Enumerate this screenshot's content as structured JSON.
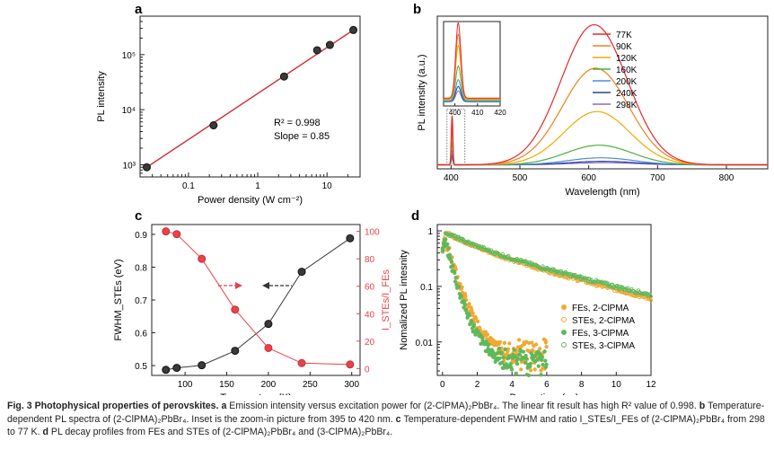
{
  "chart_data": [
    {
      "panel": "a",
      "type": "scatter",
      "xlabel": "Power density (W cm⁻²)",
      "ylabel": "PL intensity",
      "x_scale": "log",
      "y_scale": "log",
      "xlim": [
        0.02,
        30
      ],
      "ylim": [
        600,
        500000
      ],
      "x_ticks": [
        0.1,
        1,
        10
      ],
      "x_tick_labels": [
        "0.1",
        "1",
        "10"
      ],
      "y_ticks": [
        1000,
        10000,
        100000
      ],
      "y_tick_labels": [
        "10³",
        "10⁴",
        "10⁵"
      ],
      "points": [
        [
          0.025,
          900
        ],
        [
          0.23,
          5200
        ],
        [
          2.4,
          40000
        ],
        [
          7.2,
          120000
        ],
        [
          11,
          150000
        ],
        [
          24,
          280000
        ]
      ],
      "fit": {
        "x": [
          0.025,
          24
        ],
        "y": [
          900,
          280000
        ]
      },
      "annotations": [
        "R² = 0.998",
        "Slope = 0.85"
      ],
      "colors": {
        "marker": "#3a3a3a",
        "fit": "#d6262e"
      }
    },
    {
      "panel": "b",
      "type": "line",
      "xlabel": "Wavelength (nm)",
      "ylabel": "PL intensity (a.u.)",
      "xlim": [
        380,
        860
      ],
      "x_ticks": [
        400,
        500,
        600,
        700,
        800
      ],
      "series": [
        {
          "name": "77K",
          "color": "#e8282e",
          "fe_amp": 0.35,
          "ste_amp": 1.0,
          "ste_center": 608
        },
        {
          "name": "90K",
          "color": "#f08019",
          "fe_amp": 0.3,
          "ste_amp": 0.69,
          "ste_center": 610
        },
        {
          "name": "120K",
          "color": "#f2a800",
          "fe_amp": 0.25,
          "ste_amp": 0.38,
          "ste_center": 612
        },
        {
          "name": "160K",
          "color": "#4caf3e",
          "fe_amp": 0.16,
          "ste_amp": 0.14,
          "ste_center": 615
        },
        {
          "name": "200K",
          "color": "#4a8fd0",
          "fe_amp": 0.1,
          "ste_amp": 0.05,
          "ste_center": 618
        },
        {
          "name": "240K",
          "color": "#2f3f9a",
          "fe_amp": 0.07,
          "ste_amp": 0.025,
          "ste_center": 620
        },
        {
          "name": "298K",
          "color": "#8a6cc0",
          "fe_amp": 0.05,
          "ste_amp": 0.015,
          "ste_center": 622
        }
      ],
      "inset": {
        "xlim": [
          395,
          420
        ],
        "x_ticks": [
          400,
          410,
          420
        ]
      }
    },
    {
      "panel": "c",
      "type": "line",
      "xlabel": "Temperature (K)",
      "ylabel_left": "FWHM_STEs (eV)",
      "ylabel_right": "I_STEs/I_FEs",
      "xlim": [
        60,
        310
      ],
      "ylim_left": [
        0.47,
        0.93
      ],
      "ylim_right": [
        -5,
        105
      ],
      "x_ticks": [
        50,
        100,
        150,
        200,
        250,
        300
      ],
      "y_ticks_left": [
        0.5,
        0.6,
        0.7,
        0.8,
        0.9
      ],
      "y_ticks_right": [
        0,
        20,
        40,
        60,
        80,
        100
      ],
      "series": [
        {
          "name": "FWHM",
          "axis": "left",
          "color": "#3a3a3a",
          "x": [
            77,
            90,
            120,
            160,
            200,
            240,
            298
          ],
          "y": [
            0.487,
            0.493,
            0.501,
            0.545,
            0.627,
            0.786,
            0.888
          ]
        },
        {
          "name": "ratio",
          "axis": "right",
          "color": "#e8424c",
          "x": [
            77,
            90,
            120,
            160,
            200,
            240,
            298
          ],
          "y": [
            100,
            98,
            80,
            43,
            15,
            4,
            3
          ]
        }
      ]
    },
    {
      "panel": "d",
      "type": "scatter",
      "xlabel": "Decay time (ns)",
      "ylabel": "Nomalized PL intesnity",
      "y_scale": "log",
      "xlim": [
        -0.3,
        12
      ],
      "ylim": [
        0.0025,
        1.3
      ],
      "x_ticks": [
        0,
        2,
        4,
        6,
        8,
        10,
        12
      ],
      "y_ticks": [
        0.01,
        0.1,
        1
      ],
      "y_tick_labels": [
        "0.01",
        "0.1",
        "1"
      ],
      "series": [
        {
          "name": "FEs, 2-ClPMA",
          "color": "#f2a833",
          "tmax": 6,
          "tau": 0.4,
          "tau2": 1.6,
          "a2": 0.05,
          "noise_floor": 0.006
        },
        {
          "name": "STEs, 2-ClPMA",
          "color": "#f2a833",
          "tmax": 12,
          "tau": 1.6,
          "tau2": 5.4,
          "a2": 0.55
        },
        {
          "name": "FEs, 3-ClPMA",
          "color": "#5fb85a",
          "tmax": 6,
          "tau": 0.35,
          "tau2": 1.5,
          "a2": 0.04,
          "noise_floor": 0.004
        },
        {
          "name": "STEs, 3-ClPMA",
          "color": "#5fb85a",
          "tmax": 12,
          "tau": 1.7,
          "tau2": 5.8,
          "a2": 0.55
        }
      ]
    }
  ],
  "panels": {
    "a": "a",
    "b": "b",
    "c": "c",
    "d": "d"
  },
  "caption": {
    "label": "Fig. 3 Photophysical properties of perovskites.",
    "a_text": "Emission intensity versus excitation power for (2-ClPMA)₂PbBr₄. The linear fit result has high R² value of 0.998.",
    "b_text": "Temperature-dependent PL spectra of (2-ClPMA)₂PbBr₄. Inset is the zoom-in picture from 395 to 420 nm.",
    "c_text": "Temperature-dependent FWHM and ratio I_STEs/I_FEs of (2-ClPMA)₂PbBr₄ from 298 to 77 K.",
    "d_text": "PL decay profiles from FEs and STEs of (2-ClPMA)₂PbBr₄ and (3-ClPMA)₂PbBr₄."
  }
}
